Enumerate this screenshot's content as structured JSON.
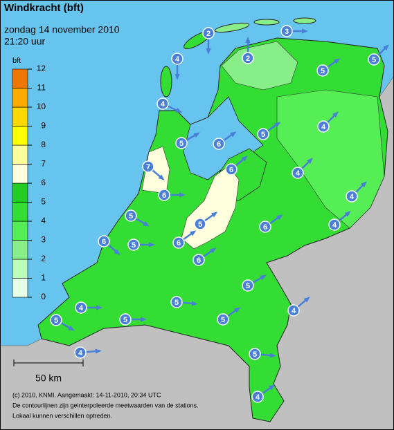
{
  "header": {
    "title": "Windkracht (bft)",
    "subtitle": "zondag 14 november 2010",
    "time": "21:20 uur"
  },
  "legend": {
    "unit": "bft",
    "levels": [
      0,
      1,
      2,
      3,
      4,
      5,
      6,
      7,
      8,
      9,
      10,
      11,
      12
    ],
    "colors": [
      "#e6ffe6",
      "#bbffbb",
      "#88ee88",
      "#55ee55",
      "#33dd33",
      "#22cc22",
      "#ffffdd",
      "#ffff99",
      "#ffff00",
      "#ffd700",
      "#ffaa00",
      "#ee7700"
    ]
  },
  "scale": "50 km",
  "footer": [
    "(c) 2010, KNMI. Aangemaakt: 14-11-2010, 20:34 UTC",
    "De contourlijnen zijn geinterpoleerde meetwaarden van de stations.",
    "Lokaal kunnen verschillen optreden."
  ],
  "stations": [
    4,
    2,
    2,
    3,
    5,
    5,
    4,
    5,
    4,
    5,
    6,
    7,
    6,
    4,
    6,
    4,
    5,
    5,
    6,
    4,
    6,
    5,
    6,
    6,
    5,
    4,
    5,
    4,
    5,
    5,
    5,
    4,
    5,
    4
  ]
}
